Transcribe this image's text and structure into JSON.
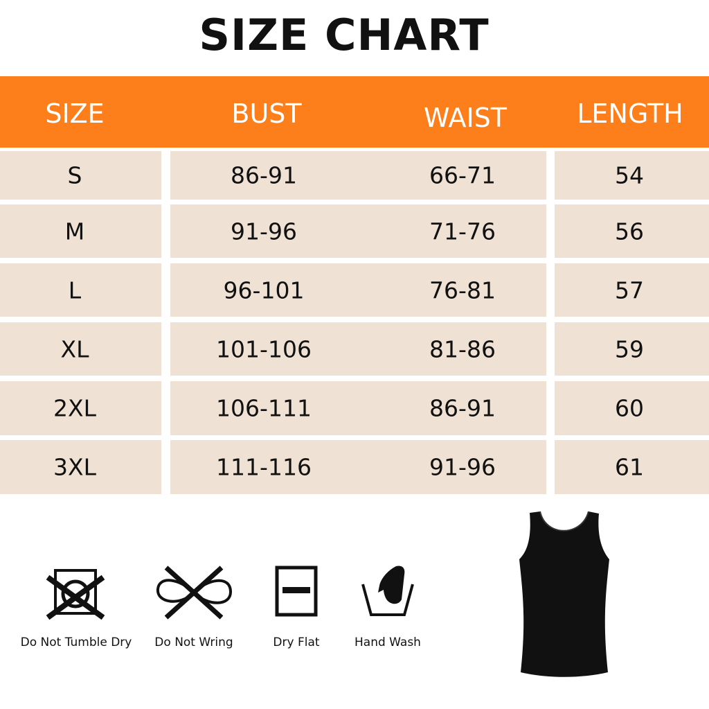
{
  "title": "SIZE CHART",
  "colors": {
    "header": "#fd7f1b",
    "row": "#efe1d3",
    "garment": "#111111"
  },
  "columns": [
    "SIZE",
    "BUST",
    "WAIST",
    "LENGTH"
  ],
  "rows": [
    [
      "S",
      "86-91",
      "66-71",
      "54"
    ],
    [
      "M",
      "91-96",
      "71-76",
      "56"
    ],
    [
      "L",
      "96-101",
      "76-81",
      "57"
    ],
    [
      "XL",
      "101-106",
      "81-86",
      "59"
    ],
    [
      "2XL",
      "106-111",
      "86-91",
      "60"
    ],
    [
      "3XL",
      "111-116",
      "91-96",
      "61"
    ]
  ],
  "care": [
    {
      "icon": "do-not-tumble-dry-icon",
      "label": "Do Not Tumble Dry"
    },
    {
      "icon": "do-not-wring-icon",
      "label": "Do Not Wring"
    },
    {
      "icon": "dry-flat-icon",
      "label": "Dry Flat"
    },
    {
      "icon": "hand-wash-icon",
      "label": "Hand Wash"
    }
  ],
  "product": {
    "image": "black-tank-top"
  }
}
